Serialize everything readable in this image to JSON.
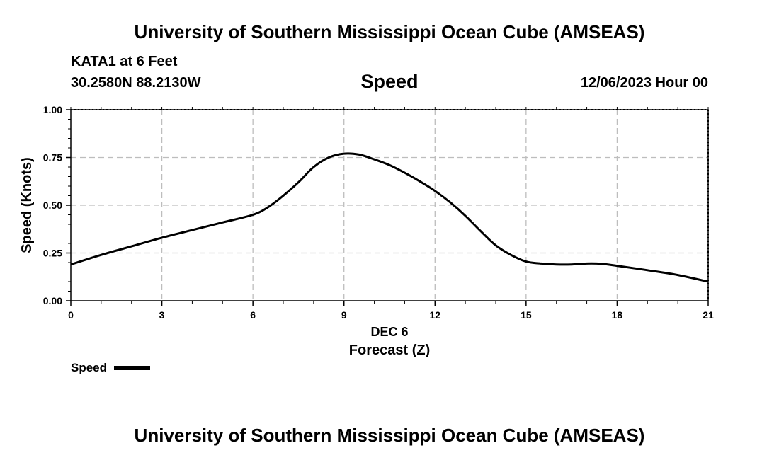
{
  "header": {
    "title": "University of Southern Mississippi Ocean Cube (AMSEAS)",
    "station": "KATA1 at 6 Feet",
    "coords": "30.2580N  88.2130W",
    "datetime": "12/06/2023 Hour 00",
    "footer_title": "University of Southern Mississippi Ocean Cube (AMSEAS)"
  },
  "chart_data": {
    "type": "line",
    "title": "Speed",
    "xlabel": "Forecast (Z)",
    "xlabel_date": "DEC 6",
    "ylabel": "Speed (Knots)",
    "xlim": [
      0,
      21
    ],
    "ylim": [
      0,
      1
    ],
    "xticks": [
      0,
      3,
      6,
      9,
      12,
      15,
      18,
      21
    ],
    "xtick_labels": [
      "0",
      "3",
      "6",
      "9",
      "12",
      "15",
      "18",
      "21"
    ],
    "yticks": [
      0,
      0.25,
      0.5,
      0.75,
      1.0
    ],
    "ytick_labels": [
      "0.00",
      "0.25",
      "0.50",
      "0.75",
      "1.00"
    ],
    "grid": true,
    "legend": {
      "position": "bottom-left",
      "label": "Speed"
    },
    "series": [
      {
        "name": "Speed",
        "color": "#000000",
        "x": [
          0,
          1,
          2,
          3,
          4,
          5,
          6,
          6.5,
          7,
          7.5,
          8,
          8.5,
          9,
          9.5,
          10,
          10.5,
          11,
          11.5,
          12,
          12.5,
          13,
          13.5,
          14,
          14.5,
          15,
          15.5,
          16,
          16.5,
          17,
          17.5,
          18,
          19,
          20,
          21
        ],
        "values": [
          0.19,
          0.24,
          0.285,
          0.33,
          0.37,
          0.41,
          0.45,
          0.49,
          0.55,
          0.62,
          0.7,
          0.75,
          0.77,
          0.765,
          0.74,
          0.71,
          0.67,
          0.625,
          0.575,
          0.515,
          0.445,
          0.365,
          0.29,
          0.24,
          0.205,
          0.195,
          0.19,
          0.19,
          0.195,
          0.193,
          0.183,
          0.16,
          0.135,
          0.1
        ]
      }
    ]
  }
}
